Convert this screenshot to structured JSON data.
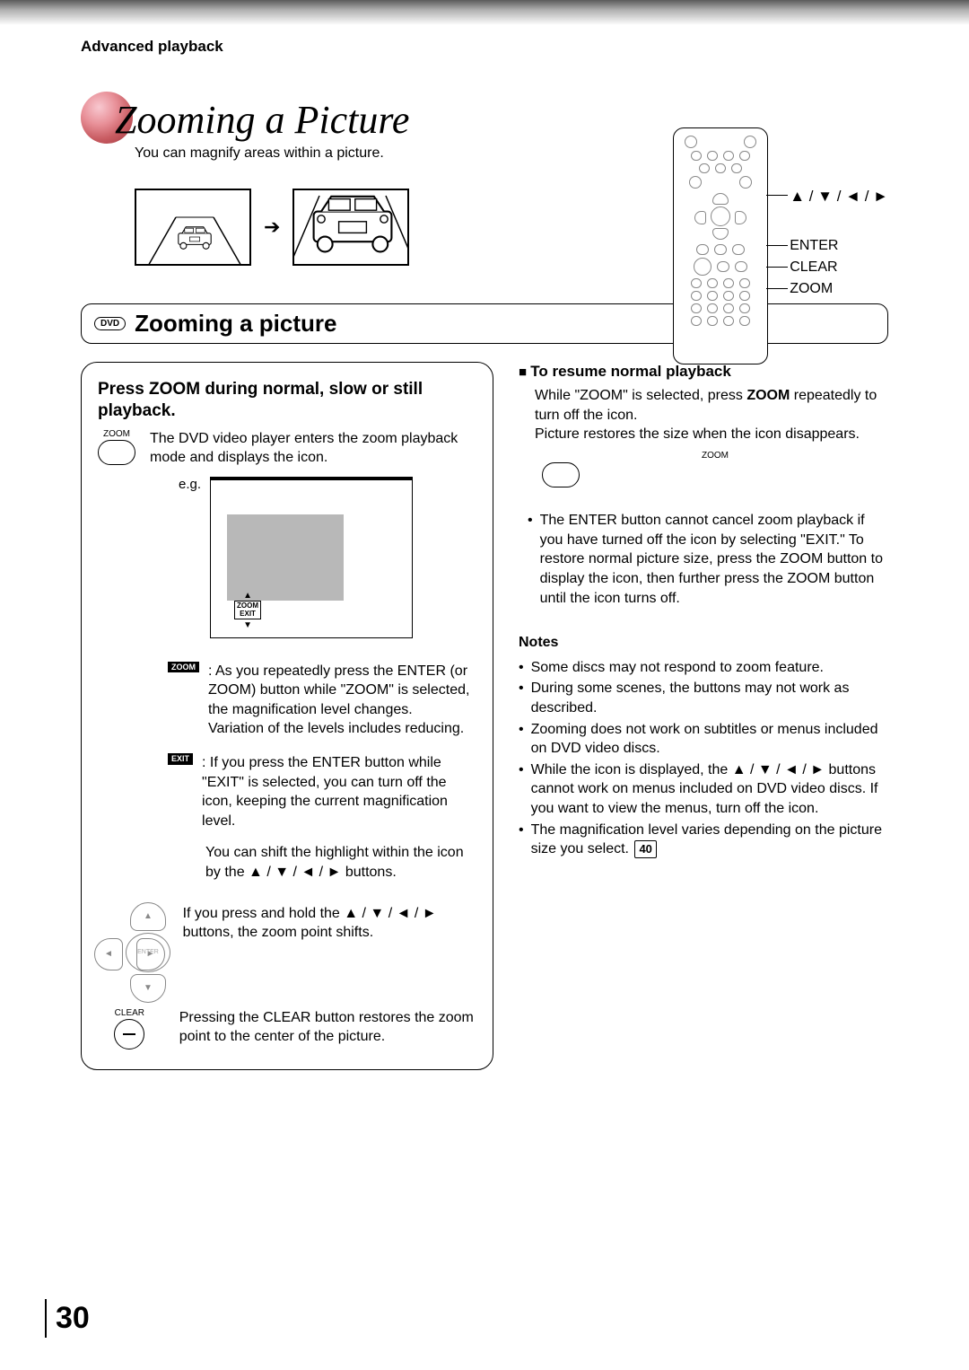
{
  "header": {
    "section": "Advanced playback"
  },
  "title": {
    "text": "Zooming a Picture",
    "subtitle": "You can magnify areas within a picture."
  },
  "remote_labels": {
    "arrows": "▲ / ▼ / ◄ / ►",
    "enter": "ENTER",
    "clear": "CLEAR",
    "zoom": "ZOOM"
  },
  "subheading": {
    "badge": "DVD",
    "text": "Zooming a picture"
  },
  "left": {
    "heading": "Press ZOOM during normal, slow or still playback.",
    "zoom_button_label": "ZOOM",
    "step1": "The DVD video player enters the zoom playback mode and displays the icon.",
    "eg": "e.g.",
    "tv_icon_top": "▲",
    "tv_icon_bottom": "▼",
    "zoom_label": "ZOOM",
    "exit_label": "EXIT",
    "zoom_desc": ": As you repeatedly press the ENTER (or ZOOM) button while \"ZOOM\" is selected, the magnification level changes.\nVariation of the levels includes reducing.",
    "exit_desc": ": If you press the ENTER button while \"EXIT\" is selected, you can turn off the icon, keeping the current magnification level.",
    "shift_text": "You can shift the highlight within the icon by the ▲ / ▼ / ◄ / ► buttons.",
    "hold_text": "If you press and hold the ▲ / ▼ / ◄ / ► buttons, the zoom point shifts.",
    "dpad_center": "ENTER",
    "clear_label": "CLEAR",
    "clear_desc": "Pressing the CLEAR button restores the zoom point to the center of the picture."
  },
  "right": {
    "resume_title": "To resume normal playback",
    "resume_p1": "While \"ZOOM\" is selected, press ZOOM repeatedly to turn off the icon.",
    "resume_p2": "Picture restores the size when the icon disappears.",
    "zoom_small_label": "ZOOM",
    "enter_note": "The ENTER button cannot cancel zoom playback if you have turned off the icon by selecting \"EXIT.\"  To restore normal picture size, press the ZOOM button to display the icon, then further press the ZOOM button until the icon turns off.",
    "notes_title": "Notes",
    "notes": [
      "Some discs may not respond to zoom feature.",
      "During some scenes, the buttons may not work as described.",
      "Zooming does not work on subtitles or menus included on DVD video discs.",
      "While the icon is displayed, the ▲ / ▼ / ◄ / ► buttons cannot work on menus included on DVD video discs.  If you want to view the menus, turn off the icon.",
      "The magnification level varies depending on the picture size you select."
    ],
    "ref": "40"
  },
  "page_number": "30"
}
